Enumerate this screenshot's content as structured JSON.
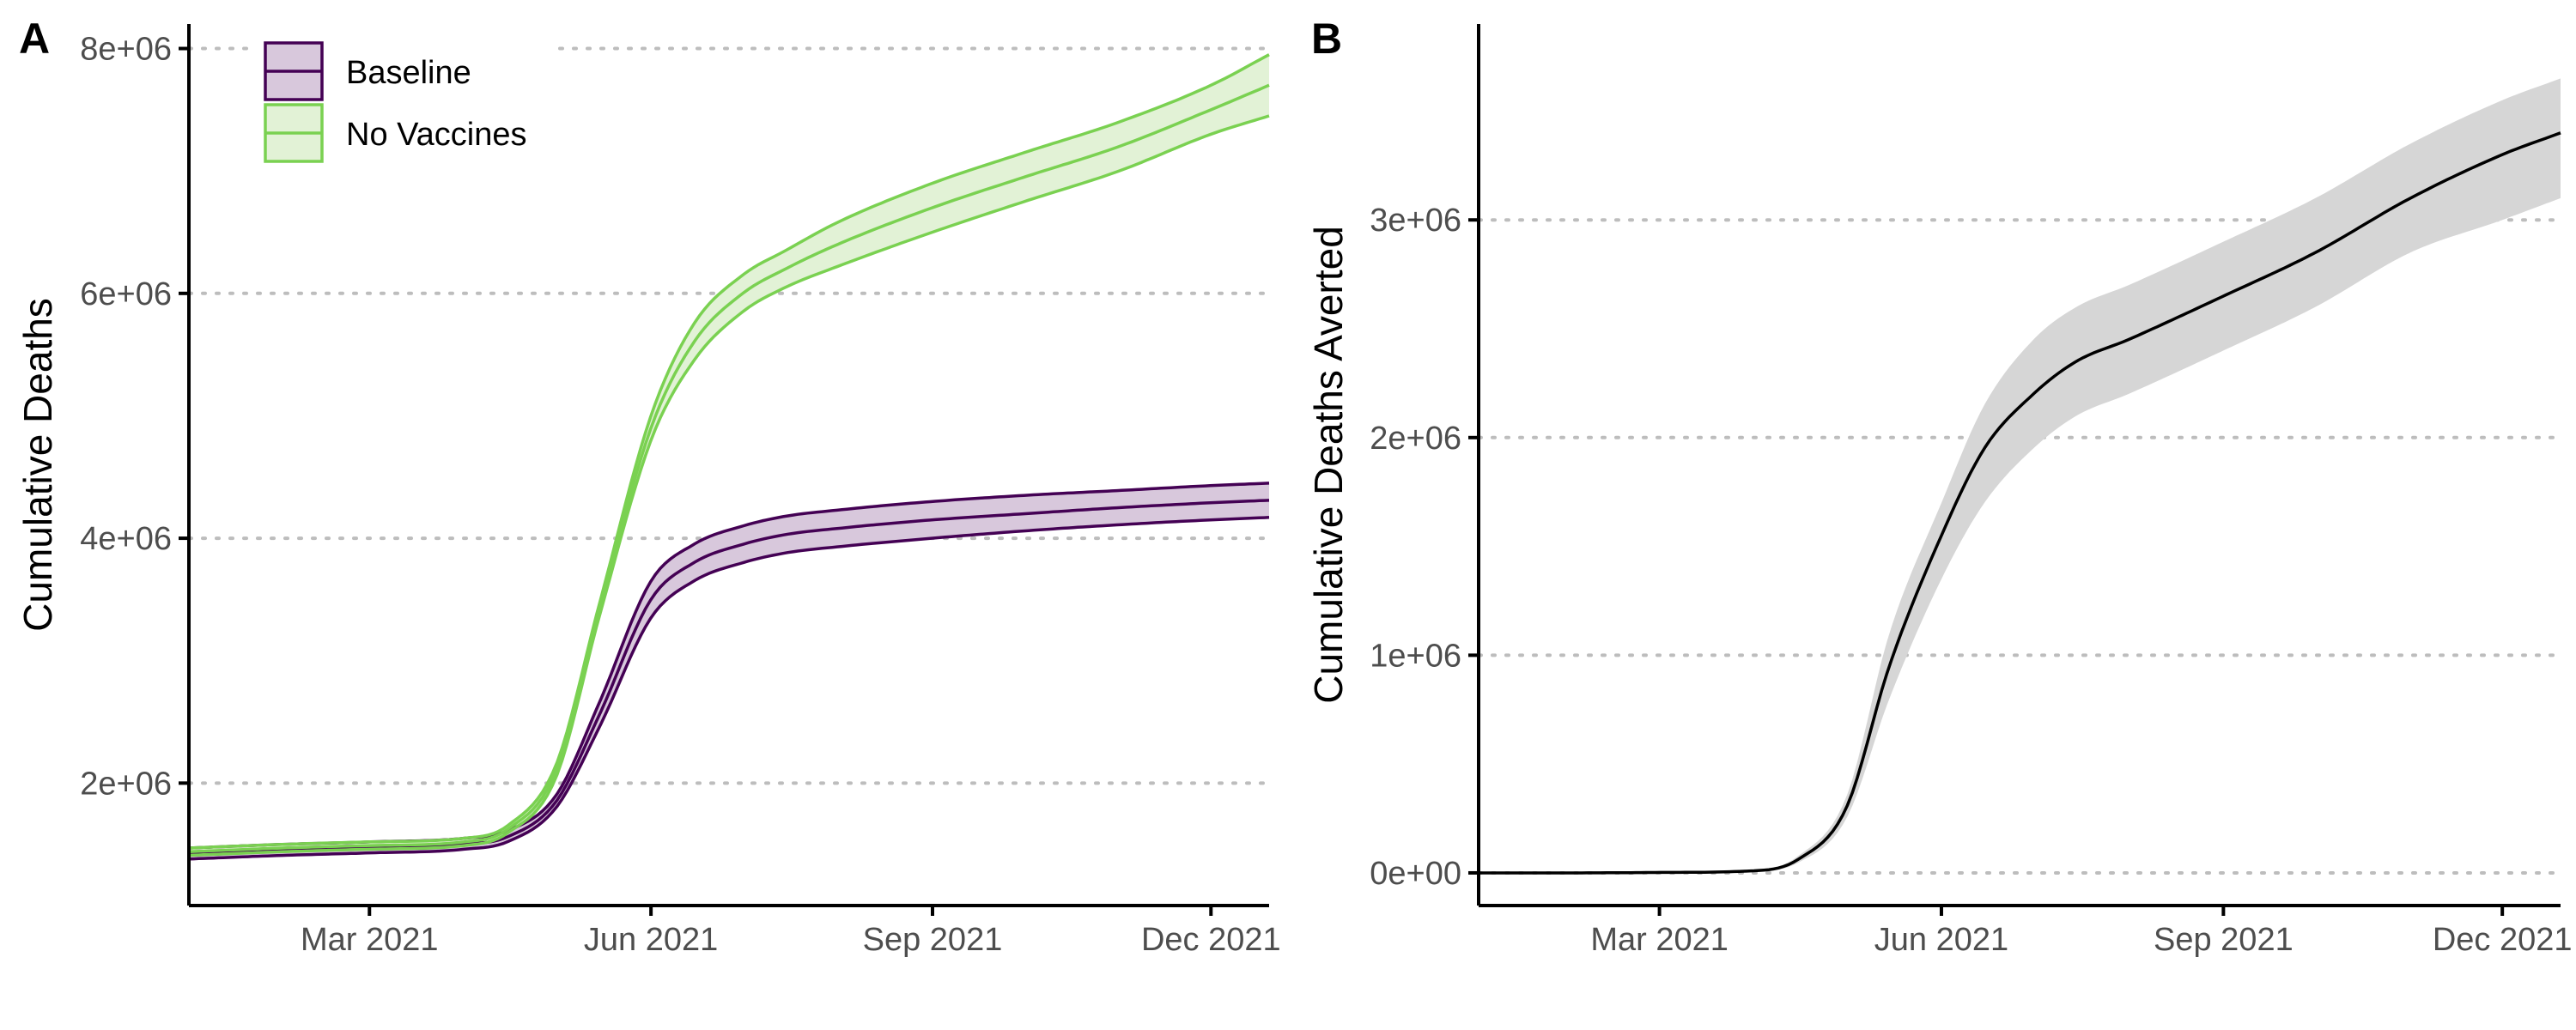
{
  "chart_data": [
    {
      "type": "line",
      "panel_label": "A",
      "title": "",
      "xlabel": "",
      "ylabel": "Cumulative Deaths",
      "x_range": [
        "2021-01-01",
        "2021-12-20"
      ],
      "ylim": [
        1000000,
        8200000
      ],
      "x_ticks": [
        {
          "date": "2021-03-01",
          "label": "Mar 2021"
        },
        {
          "date": "2021-06-01",
          "label": "Jun 2021"
        },
        {
          "date": "2021-09-01",
          "label": "Sep 2021"
        },
        {
          "date": "2021-12-01",
          "label": "Dec 2021"
        }
      ],
      "y_ticks": [
        {
          "value": 2000000,
          "label": "2e+06"
        },
        {
          "value": 4000000,
          "label": "4e+06"
        },
        {
          "value": 6000000,
          "label": "6e+06"
        },
        {
          "value": 8000000,
          "label": "8e+06"
        }
      ],
      "grid": "horizontal-dotted",
      "legend_position": "top-left",
      "series": [
        {
          "name": "Baseline",
          "color": "#440154",
          "fill": "#d8c8dc",
          "dates": [
            "2021-01-01",
            "2021-02-01",
            "2021-03-01",
            "2021-04-01",
            "2021-04-15",
            "2021-05-01",
            "2021-05-15",
            "2021-06-01",
            "2021-06-15",
            "2021-07-01",
            "2021-07-15",
            "2021-08-01",
            "2021-09-01",
            "2021-10-01",
            "2021-11-01",
            "2021-12-01",
            "2021-12-20"
          ],
          "values": [
            1420000,
            1450000,
            1470000,
            1500000,
            1560000,
            1850000,
            2550000,
            3500000,
            3800000,
            3950000,
            4030000,
            4080000,
            4150000,
            4200000,
            4250000,
            4290000,
            4310000
          ],
          "lower": [
            1380000,
            1410000,
            1430000,
            1460000,
            1520000,
            1800000,
            2450000,
            3350000,
            3650000,
            3800000,
            3880000,
            3930000,
            4000000,
            4060000,
            4110000,
            4150000,
            4170000
          ],
          "upper": [
            1470000,
            1500000,
            1520000,
            1550000,
            1610000,
            1900000,
            2650000,
            3650000,
            3950000,
            4100000,
            4180000,
            4230000,
            4300000,
            4350000,
            4390000,
            4430000,
            4450000
          ]
        },
        {
          "name": "No Vaccines",
          "color": "#7ad151",
          "fill": "#e2f2d6",
          "dates": [
            "2021-01-01",
            "2021-02-01",
            "2021-03-01",
            "2021-04-01",
            "2021-04-15",
            "2021-05-01",
            "2021-05-15",
            "2021-06-01",
            "2021-06-15",
            "2021-07-01",
            "2021-07-15",
            "2021-08-01",
            "2021-09-01",
            "2021-10-01",
            "2021-11-01",
            "2021-12-01",
            "2021-12-20"
          ],
          "values": [
            1440000,
            1470000,
            1490000,
            1520000,
            1620000,
            2100000,
            3400000,
            4900000,
            5600000,
            6000000,
            6200000,
            6400000,
            6700000,
            6950000,
            7200000,
            7500000,
            7700000
          ],
          "lower": [
            1410000,
            1440000,
            1460000,
            1490000,
            1590000,
            2050000,
            3350000,
            4800000,
            5450000,
            5850000,
            6050000,
            6220000,
            6500000,
            6750000,
            7000000,
            7300000,
            7450000
          ],
          "upper": [
            1470000,
            1500000,
            1520000,
            1550000,
            1650000,
            2150000,
            3450000,
            5000000,
            5750000,
            6150000,
            6350000,
            6580000,
            6900000,
            7150000,
            7400000,
            7700000,
            7950000
          ]
        }
      ]
    },
    {
      "type": "line",
      "panel_label": "B",
      "title": "",
      "xlabel": "",
      "ylabel": "Cumulative Deaths Averted",
      "x_range": [
        "2021-01-01",
        "2021-12-20"
      ],
      "ylim": [
        -150000,
        3900000
      ],
      "x_ticks": [
        {
          "date": "2021-03-01",
          "label": "Mar 2021"
        },
        {
          "date": "2021-06-01",
          "label": "Jun 2021"
        },
        {
          "date": "2021-09-01",
          "label": "Sep 2021"
        },
        {
          "date": "2021-12-01",
          "label": "Dec 2021"
        }
      ],
      "y_ticks": [
        {
          "value": 0,
          "label": "0e+00"
        },
        {
          "value": 1000000,
          "label": "1e+06"
        },
        {
          "value": 2000000,
          "label": "2e+06"
        },
        {
          "value": 3000000,
          "label": "3e+06"
        }
      ],
      "grid": "horizontal-dotted",
      "series": [
        {
          "name": "",
          "color": "#000000",
          "fill": "#d6d6d6",
          "dates": [
            "2021-01-01",
            "2021-02-01",
            "2021-03-01",
            "2021-04-01",
            "2021-04-15",
            "2021-05-01",
            "2021-05-15",
            "2021-06-01",
            "2021-06-15",
            "2021-07-01",
            "2021-07-15",
            "2021-08-01",
            "2021-09-01",
            "2021-10-01",
            "2021-11-01",
            "2021-12-01",
            "2021-12-20"
          ],
          "values": [
            0,
            0,
            2000,
            10000,
            60000,
            300000,
            950000,
            1550000,
            1950000,
            2200000,
            2350000,
            2450000,
            2650000,
            2850000,
            3100000,
            3300000,
            3400000
          ],
          "lower": [
            0,
            0,
            1000,
            7000,
            45000,
            250000,
            800000,
            1350000,
            1700000,
            1950000,
            2100000,
            2200000,
            2400000,
            2600000,
            2850000,
            3000000,
            3100000
          ],
          "upper": [
            0,
            0,
            3000,
            13000,
            75000,
            350000,
            1100000,
            1700000,
            2150000,
            2450000,
            2600000,
            2700000,
            2900000,
            3100000,
            3350000,
            3550000,
            3650000
          ]
        }
      ]
    }
  ]
}
